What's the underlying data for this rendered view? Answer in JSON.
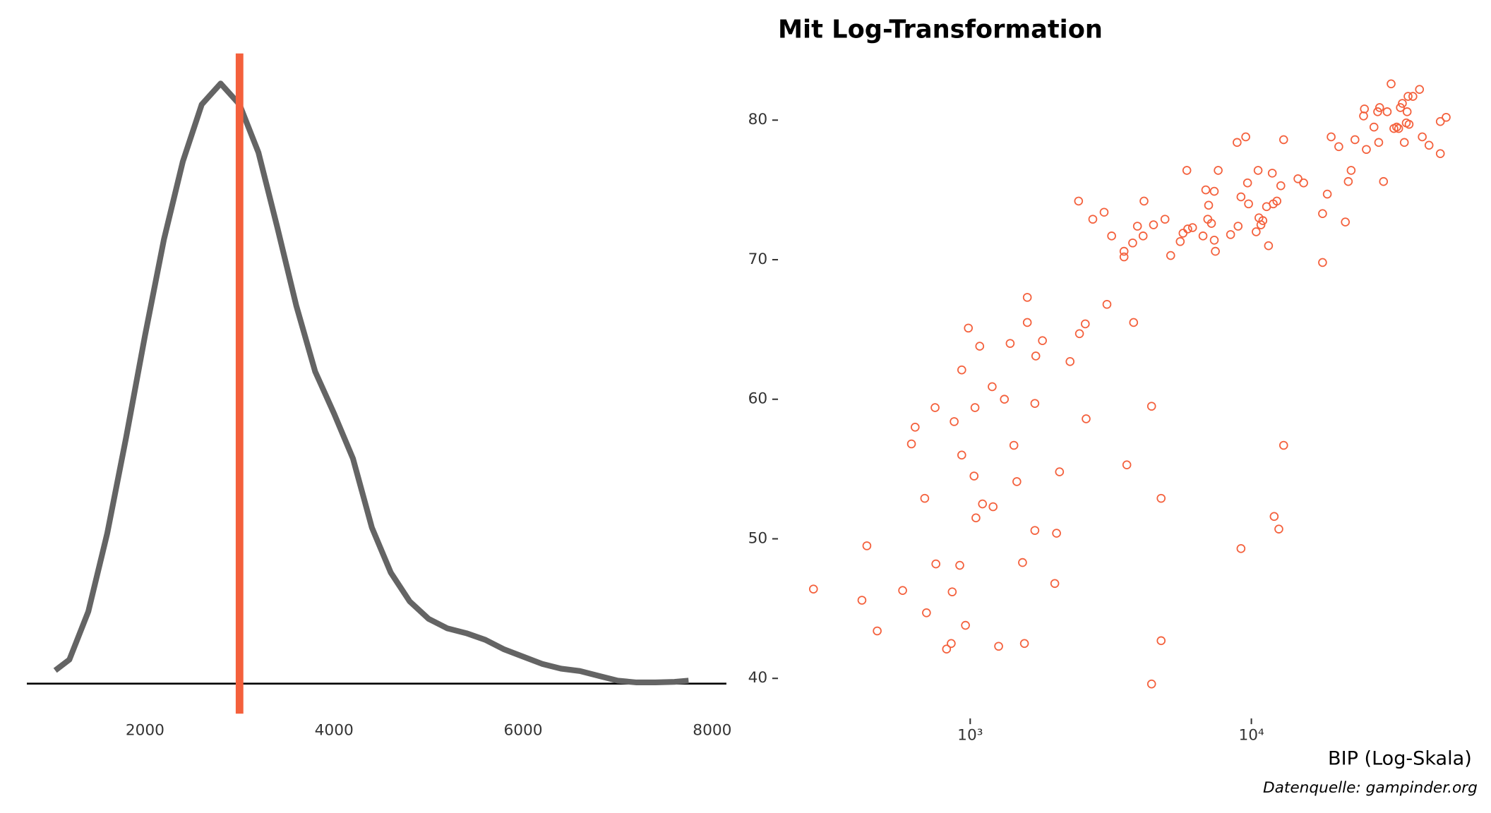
{
  "chart_data": [
    {
      "type": "line",
      "color": "#646464",
      "x": [
        1050,
        1200,
        1400,
        1600,
        1800,
        2000,
        2200,
        2400,
        2600,
        2800,
        3000,
        3200,
        3400,
        3600,
        3800,
        4000,
        4200,
        4400,
        4600,
        4800,
        5000,
        5200,
        5400,
        5600,
        5800,
        6000,
        6200,
        6400,
        6600,
        6800,
        7000,
        7200,
        7400,
        7600,
        7750
      ],
      "values": [
        0.022,
        0.04,
        0.12,
        0.25,
        0.41,
        0.58,
        0.74,
        0.87,
        0.965,
        1.0,
        0.965,
        0.885,
        0.76,
        0.63,
        0.52,
        0.45,
        0.375,
        0.26,
        0.185,
        0.137,
        0.108,
        0.092,
        0.084,
        0.073,
        0.057,
        0.045,
        0.033,
        0.025,
        0.021,
        0.013,
        0.005,
        0.002,
        0.002,
        0.003,
        0.005
      ],
      "xlim": [
        750,
        8150
      ],
      "ylim": [
        -0.05,
        1.05
      ],
      "xticks": [
        2000,
        4000,
        6000,
        8000
      ],
      "vline": {
        "x": 3000,
        "color": "#f4603c"
      }
    },
    {
      "type": "scatter",
      "title": "Mit Log-Transformation",
      "x_label": "BIP (Log-Skala)",
      "caption": "Datenquelle: gampinder.org",
      "color": "#f4603c",
      "log_x": true,
      "x": [
        277,
        429,
        412,
        467,
        575,
        618,
        637,
        689,
        699,
        750,
        755,
        824,
        856,
        863,
        877,
        918,
        933,
        933,
        962,
        985,
        1032,
        1040,
        1048,
        1081,
        1106,
        1197,
        1206,
        1262,
        1323,
        1387,
        1430,
        1465,
        1535,
        1559,
        1596,
        1596,
        1698,
        1698,
        1711,
        1807,
        1999,
        2028,
        2078,
        2265,
        2429,
        2447,
        2566,
        2584,
        2729,
        2994,
        3064,
        3184,
        3524,
        3524,
        3606,
        3783,
        3812,
        3933,
        4120,
        4151,
        4416,
        4416,
        4487,
        4775,
        4775,
        4928,
        5164,
        5584,
        5714,
        5895,
        5938,
        6177,
        6729,
        6884,
        6997,
        7046,
        7211,
        7379,
        7379,
        7447,
        7621,
        8435,
        8897,
        8969,
        9184,
        9184,
        9549,
        9690,
        9772,
        10399,
        10565,
        10641,
        10814,
        10984,
        11324,
        11508,
        11866,
        11963,
        12051,
        12323,
        12521,
        12727,
        13024,
        13024,
        14644,
        15339,
        17913,
        17913,
        18620,
        19219,
        20458,
        21590,
        22116,
        22636,
        23357,
        25061,
        25238,
        25644,
        27290,
        28132,
        28371,
        28583,
        29509,
        30413,
        31405,
        32126,
        32871,
        33402,
        33884,
        34435,
        34992,
        35559,
        35807,
        36081,
        36378,
        37530,
        39625,
        40534,
        42836,
        46989,
        46989,
        49296
      ],
      "values": [
        46.4,
        49.5,
        45.6,
        43.4,
        46.3,
        56.8,
        58.0,
        52.9,
        44.7,
        59.4,
        48.2,
        42.1,
        42.5,
        46.2,
        58.4,
        48.1,
        62.1,
        56.0,
        43.8,
        65.1,
        54.5,
        59.4,
        51.5,
        63.8,
        52.5,
        60.9,
        52.3,
        42.3,
        60.0,
        64.0,
        56.7,
        54.1,
        48.3,
        42.5,
        65.5,
        67.3,
        50.6,
        59.7,
        63.1,
        64.2,
        46.8,
        50.4,
        54.8,
        62.7,
        74.2,
        64.7,
        65.4,
        58.6,
        72.9,
        73.4,
        66.8,
        71.7,
        70.6,
        70.2,
        55.3,
        71.2,
        65.5,
        72.4,
        71.7,
        74.2,
        39.6,
        59.5,
        72.5,
        42.7,
        52.9,
        72.9,
        70.3,
        71.3,
        71.9,
        76.4,
        72.2,
        72.3,
        71.7,
        75.0,
        72.9,
        73.9,
        72.6,
        74.9,
        71.4,
        70.6,
        76.4,
        71.8,
        78.4,
        72.4,
        74.5,
        49.3,
        78.8,
        75.5,
        74.0,
        72.0,
        76.4,
        73.0,
        72.5,
        72.8,
        73.8,
        71.0,
        76.2,
        74.0,
        51.6,
        74.2,
        50.7,
        75.3,
        78.6,
        56.7,
        75.8,
        75.5,
        73.3,
        69.8,
        74.7,
        78.8,
        78.1,
        72.7,
        75.6,
        76.4,
        78.6,
        80.3,
        80.8,
        77.9,
        79.5,
        80.6,
        78.4,
        80.9,
        75.6,
        80.6,
        82.6,
        79.4,
        79.5,
        79.4,
        80.9,
        81.2,
        78.4,
        79.8,
        80.6,
        81.7,
        79.7,
        81.7,
        82.2,
        78.8,
        78.2,
        79.9,
        77.6,
        80.2
      ],
      "xlim": [
        250,
        52000
      ],
      "ylim": [
        38.5,
        84.5
      ],
      "xticks": [
        {
          "value": 1000,
          "label": "10³"
        },
        {
          "value": 10000,
          "label": "10⁴"
        }
      ],
      "yticks": [
        40,
        50,
        60,
        70,
        80
      ]
    }
  ]
}
